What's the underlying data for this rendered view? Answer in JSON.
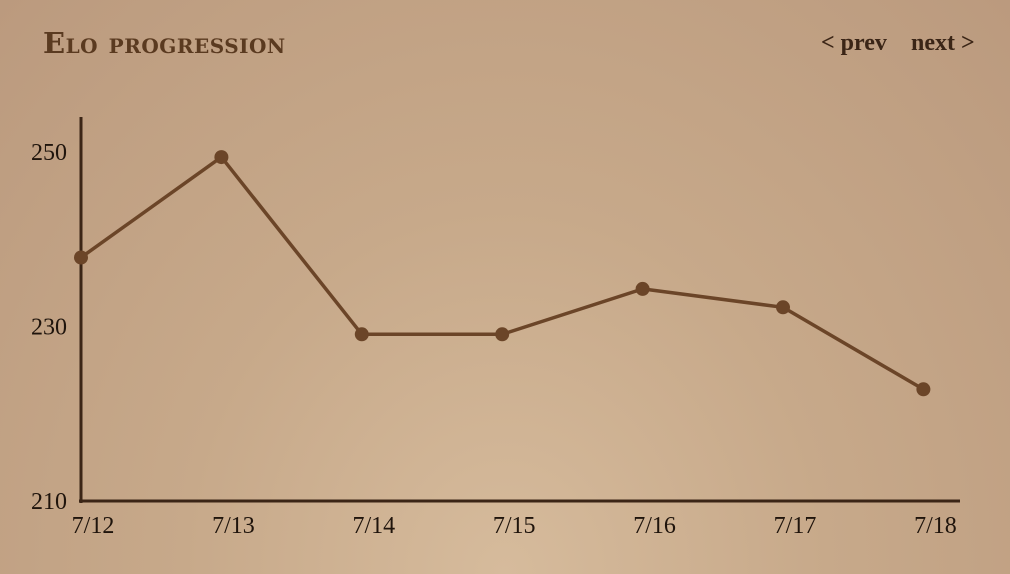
{
  "chart_data": {
    "type": "line",
    "title": "Elo progression",
    "xlabel": "",
    "ylabel": "",
    "categories": [
      "7/12",
      "7/13",
      "7/14",
      "7/15",
      "7/16",
      "7/17",
      "7/18"
    ],
    "series": [
      {
        "values": [
          237.9,
          249.4,
          229.1,
          229.1,
          234.3,
          232.2,
          222.8
        ]
      }
    ],
    "yticks": [
      "210",
      "230",
      "250"
    ],
    "ylim": [
      210,
      254
    ],
    "grid": false,
    "line_color": "#6b4528",
    "axis_color": "#3b2516"
  },
  "nav": {
    "prev_label": "< prev",
    "next_label": "next >"
  }
}
